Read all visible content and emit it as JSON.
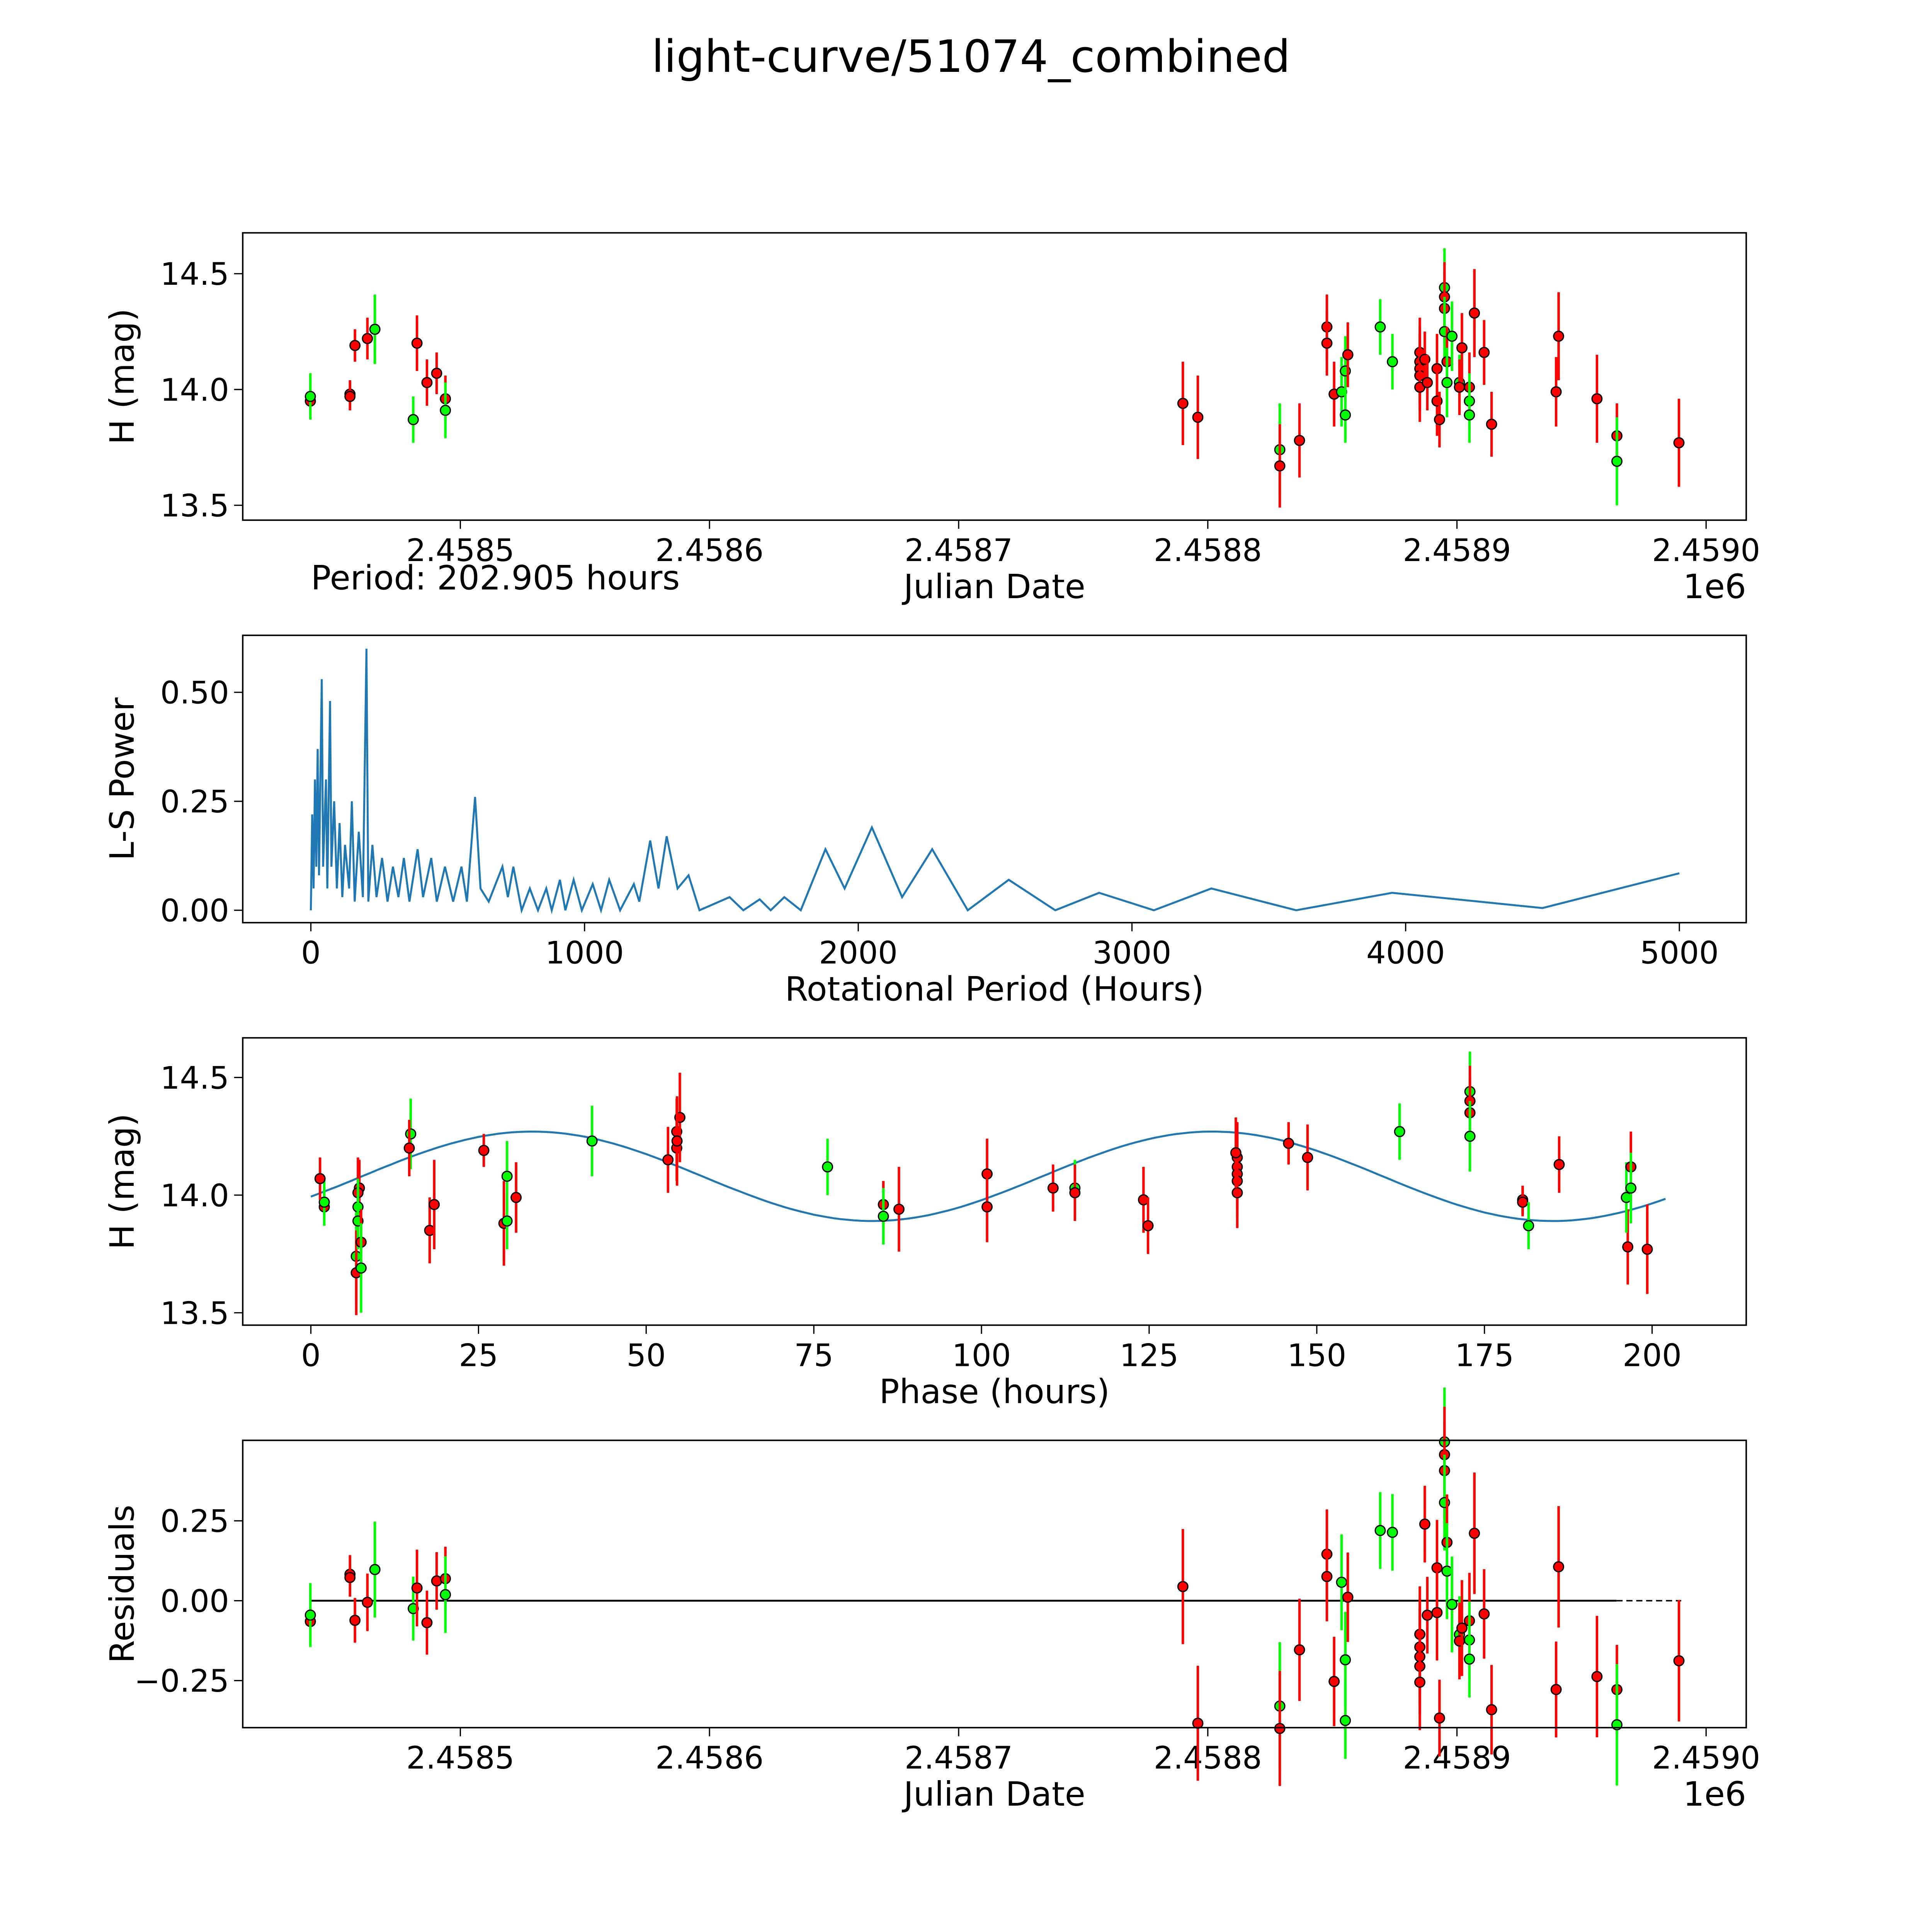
{
  "chart_data": {
    "title": "light-curve/51074_combined",
    "period_label": "Period: 202.905 hours",
    "period_hours": 202.905,
    "colors": {
      "band_a": "#ff0000",
      "band_b": "#00ff00",
      "model": "#1f77b4",
      "point_edge": "#000000"
    },
    "model": {
      "type": "sinusoid",
      "mean": 14.08,
      "amplitude": 0.19,
      "cycles_per_period": 2,
      "peak_phase": 33
    },
    "observations": [
      [
        2458439.8,
        13.95,
        0.08,
        "r"
      ],
      [
        2458439.8,
        13.97,
        0.1,
        "g"
      ],
      [
        2458455.7,
        13.98,
        0.06,
        "r"
      ],
      [
        2458455.7,
        13.97,
        0.06,
        "r"
      ],
      [
        2458457.7,
        14.19,
        0.07,
        "r"
      ],
      [
        2458462.7,
        14.22,
        0.09,
        "r"
      ],
      [
        2458465.7,
        14.26,
        0.09,
        "r"
      ],
      [
        2458465.7,
        14.26,
        0.15,
        "g"
      ],
      [
        2458481.1,
        13.87,
        0.1,
        "g"
      ],
      [
        2458482.6,
        14.2,
        0.12,
        "r"
      ],
      [
        2458486.6,
        14.03,
        0.1,
        "r"
      ],
      [
        2458490.5,
        14.07,
        0.09,
        "r"
      ],
      [
        2458494.0,
        13.96,
        0.1,
        "r"
      ],
      [
        2458494.0,
        13.91,
        0.12,
        "g"
      ],
      [
        2458790.0,
        13.94,
        0.18,
        "r"
      ],
      [
        2458796.0,
        13.88,
        0.18,
        "r"
      ],
      [
        2458828.9,
        13.74,
        0.2,
        "g"
      ],
      [
        2458828.9,
        13.67,
        0.18,
        "r"
      ],
      [
        2458836.8,
        13.78,
        0.16,
        "r"
      ],
      [
        2458847.8,
        14.27,
        0.14,
        "r"
      ],
      [
        2458847.8,
        14.2,
        0.14,
        "r"
      ],
      [
        2458850.7,
        13.98,
        0.14,
        "r"
      ],
      [
        2458853.7,
        13.99,
        0.15,
        "g"
      ],
      [
        2458855.2,
        14.08,
        0.15,
        "g"
      ],
      [
        2458855.2,
        13.89,
        0.12,
        "g"
      ],
      [
        2458856.2,
        14.15,
        0.14,
        "r"
      ],
      [
        2458869.2,
        14.27,
        0.12,
        "g"
      ],
      [
        2458874.1,
        14.12,
        0.12,
        "g"
      ],
      [
        2458885.1,
        14.16,
        0.15,
        "r"
      ],
      [
        2458885.1,
        14.12,
        0.15,
        "r"
      ],
      [
        2458885.1,
        14.09,
        0.15,
        "r"
      ],
      [
        2458885.1,
        14.06,
        0.15,
        "r"
      ],
      [
        2458885.1,
        14.01,
        0.15,
        "r"
      ],
      [
        2458887.1,
        14.13,
        0.12,
        "r"
      ],
      [
        2458888.1,
        14.03,
        0.12,
        "r"
      ],
      [
        2458892.0,
        14.09,
        0.15,
        "r"
      ],
      [
        2458892.0,
        13.95,
        0.15,
        "r"
      ],
      [
        2458893.0,
        13.87,
        0.12,
        "r"
      ],
      [
        2458895.0,
        14.44,
        0.17,
        "g"
      ],
      [
        2458895.0,
        14.4,
        0.15,
        "r"
      ],
      [
        2458895.0,
        14.35,
        0.15,
        "r"
      ],
      [
        2458895.0,
        14.25,
        0.15,
        "g"
      ],
      [
        2458896.0,
        14.12,
        0.15,
        "r"
      ],
      [
        2458896.0,
        14.03,
        0.15,
        "g"
      ],
      [
        2458898.0,
        14.23,
        0.15,
        "g"
      ],
      [
        2458901.0,
        14.03,
        0.12,
        "g"
      ],
      [
        2458901.0,
        14.01,
        0.12,
        "r"
      ],
      [
        2458902.0,
        14.18,
        0.15,
        "r"
      ],
      [
        2458905.0,
        14.01,
        0.15,
        "r"
      ],
      [
        2458905.0,
        13.95,
        0.12,
        "g"
      ],
      [
        2458905.0,
        13.89,
        0.12,
        "g"
      ],
      [
        2458907.0,
        14.33,
        0.19,
        "r"
      ],
      [
        2458910.9,
        14.16,
        0.14,
        "r"
      ],
      [
        2458913.9,
        13.85,
        0.14,
        "r"
      ],
      [
        2458939.8,
        13.99,
        0.15,
        "r"
      ],
      [
        2458940.8,
        14.23,
        0.19,
        "r"
      ],
      [
        2458956.2,
        13.96,
        0.19,
        "r"
      ],
      [
        2458964.2,
        13.8,
        0.14,
        "r"
      ],
      [
        2458964.2,
        13.69,
        0.19,
        "g"
      ],
      [
        2458989.1,
        13.77,
        0.19,
        "r"
      ]
    ],
    "panels": [
      {
        "type": "scatter",
        "xlabel": "Julian Date",
        "ylabel": "H (mag)",
        "offset_text": "1e6",
        "xticks": [
          [
            2458500,
            "2.4585"
          ],
          [
            2458600,
            "2.4586"
          ],
          [
            2458700,
            "2.4587"
          ],
          [
            2458800,
            "2.4588"
          ],
          [
            2458900,
            "2.4589"
          ],
          [
            2459000,
            "2.4590"
          ]
        ],
        "yticks": [
          [
            13.5,
            "13.5"
          ],
          [
            14.0,
            "14.0"
          ],
          [
            14.5,
            "14.5"
          ]
        ]
      },
      {
        "type": "line",
        "xlabel": "Rotational Period (Hours)",
        "ylabel": "L-S Power",
        "xticks": [
          [
            0,
            "0"
          ],
          [
            1000,
            "1000"
          ],
          [
            2000,
            "2000"
          ],
          [
            3000,
            "3000"
          ],
          [
            4000,
            "4000"
          ],
          [
            5000,
            "5000"
          ]
        ],
        "yticks": [
          [
            0,
            "0.00"
          ],
          [
            0.25,
            "0.25"
          ],
          [
            0.5,
            "0.50"
          ]
        ]
      },
      {
        "type": "scatter",
        "xlabel": "Phase (hours)",
        "ylabel": "H (mag)",
        "xticks": [
          [
            0,
            "0"
          ],
          [
            25,
            "25"
          ],
          [
            50,
            "50"
          ],
          [
            75,
            "75"
          ],
          [
            100,
            "100"
          ],
          [
            125,
            "125"
          ],
          [
            150,
            "150"
          ],
          [
            175,
            "175"
          ],
          [
            200,
            "200"
          ]
        ],
        "yticks": [
          [
            13.5,
            "13.5"
          ],
          [
            14.0,
            "14.0"
          ],
          [
            14.5,
            "14.5"
          ]
        ]
      },
      {
        "type": "scatter",
        "xlabel": "Julian Date",
        "ylabel": "Residuals",
        "offset_text": "1e6",
        "xticks": [
          [
            2458500,
            "2.4585"
          ],
          [
            2458600,
            "2.4586"
          ],
          [
            2458700,
            "2.4587"
          ],
          [
            2458800,
            "2.4588"
          ],
          [
            2458900,
            "2.4589"
          ],
          [
            2459000,
            "2.4590"
          ]
        ],
        "yticks": [
          [
            -0.25,
            "−0.25"
          ],
          [
            0,
            "0.00"
          ],
          [
            0.25,
            "0.25"
          ]
        ]
      }
    ],
    "periodogram": [
      [
        0,
        0
      ],
      [
        5,
        0.22
      ],
      [
        10,
        0.05
      ],
      [
        15,
        0.3
      ],
      [
        20,
        0.1
      ],
      [
        25,
        0.37
      ],
      [
        30,
        0.08
      ],
      [
        40,
        0.53
      ],
      [
        45,
        0.1
      ],
      [
        55,
        0.3
      ],
      [
        60,
        0.05
      ],
      [
        70,
        0.48
      ],
      [
        75,
        0.1
      ],
      [
        85,
        0.25
      ],
      [
        95,
        0.05
      ],
      [
        105,
        0.2
      ],
      [
        115,
        0.03
      ],
      [
        125,
        0.15
      ],
      [
        140,
        0.05
      ],
      [
        150,
        0.25
      ],
      [
        160,
        0.02
      ],
      [
        175,
        0.18
      ],
      [
        190,
        0.03
      ],
      [
        203,
        0.6
      ],
      [
        210,
        0.02
      ],
      [
        225,
        0.15
      ],
      [
        240,
        0.03
      ],
      [
        260,
        0.12
      ],
      [
        280,
        0.02
      ],
      [
        300,
        0.1
      ],
      [
        320,
        0.03
      ],
      [
        340,
        0.12
      ],
      [
        360,
        0.02
      ],
      [
        390,
        0.14
      ],
      [
        410,
        0.03
      ],
      [
        440,
        0.12
      ],
      [
        460,
        0.02
      ],
      [
        490,
        0.1
      ],
      [
        520,
        0.02
      ],
      [
        550,
        0.1
      ],
      [
        570,
        0.02
      ],
      [
        600,
        0.26
      ],
      [
        620,
        0.05
      ],
      [
        650,
        0.02
      ],
      [
        700,
        0.1
      ],
      [
        720,
        0.03
      ],
      [
        740,
        0.1
      ],
      [
        770,
        0
      ],
      [
        800,
        0.05
      ],
      [
        830,
        0
      ],
      [
        860,
        0.05
      ],
      [
        880,
        0
      ],
      [
        910,
        0.07
      ],
      [
        930,
        0
      ],
      [
        960,
        0.07
      ],
      [
        990,
        0
      ],
      [
        1030,
        0.06
      ],
      [
        1060,
        0
      ],
      [
        1090,
        0.07
      ],
      [
        1130,
        0
      ],
      [
        1180,
        0.06
      ],
      [
        1200,
        0.02
      ],
      [
        1240,
        0.16
      ],
      [
        1270,
        0.05
      ],
      [
        1300,
        0.17
      ],
      [
        1340,
        0.05
      ],
      [
        1380,
        0.08
      ],
      [
        1420,
        0
      ],
      [
        1530,
        0.03
      ],
      [
        1580,
        0
      ],
      [
        1640,
        0.025
      ],
      [
        1680,
        0
      ],
      [
        1730,
        0.03
      ],
      [
        1790,
        0
      ],
      [
        1880,
        0.14
      ],
      [
        1950,
        0.05
      ],
      [
        2050,
        0.19
      ],
      [
        2160,
        0.03
      ],
      [
        2270,
        0.14
      ],
      [
        2400,
        0
      ],
      [
        2550,
        0.07
      ],
      [
        2720,
        0
      ],
      [
        2880,
        0.04
      ],
      [
        3080,
        0
      ],
      [
        3290,
        0.05
      ],
      [
        3600,
        0
      ],
      [
        3950,
        0.04
      ],
      [
        4500,
        0.005
      ],
      [
        5000,
        0.085
      ]
    ]
  }
}
